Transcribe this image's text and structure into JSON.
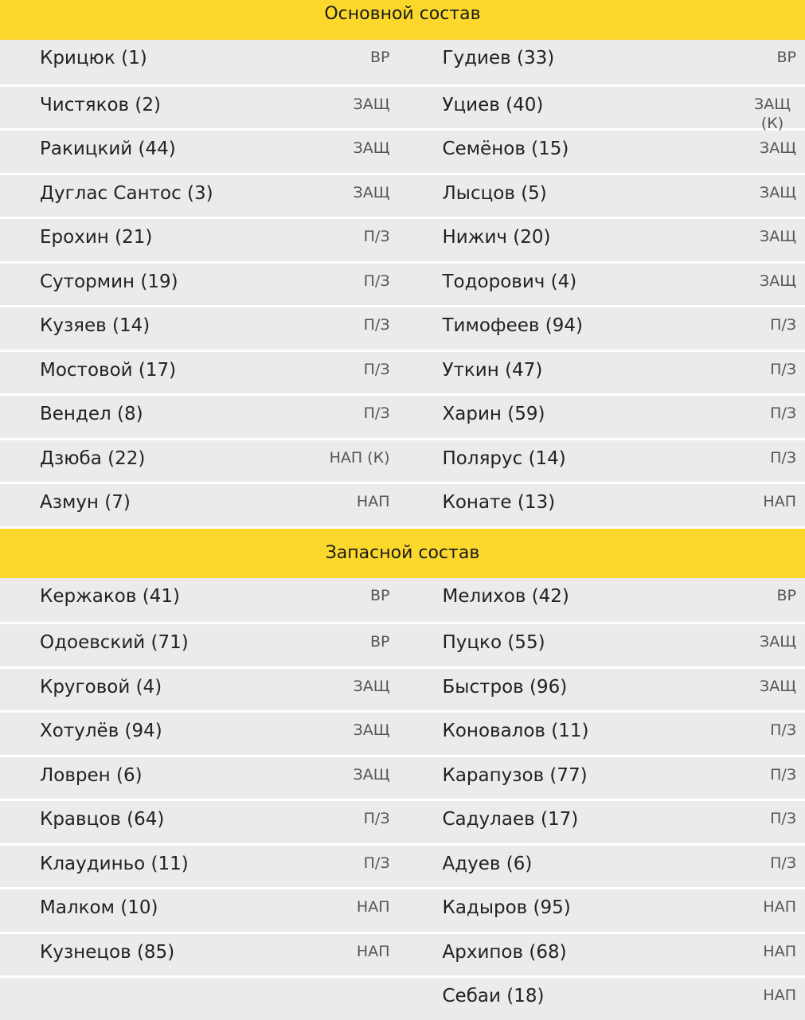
{
  "main_header": "Основной состав",
  "bench_header": "Запасной состав",
  "colors": {
    "header_bg": "#fcd82c",
    "row_bg": "#ebebeb"
  },
  "main": [
    [
      {
        "name": "Крицюк (1)",
        "pos": "ВР"
      },
      {
        "name": "Гудиев (33)",
        "pos": "ВР"
      }
    ],
    [
      {
        "name": "Чистяков (2)",
        "pos": "ЗАЩ"
      },
      {
        "name": "Уциев (40)",
        "pos": "ЗАЩ (К)"
      }
    ],
    [
      {
        "name": "Ракицкий (44)",
        "pos": "ЗАЩ"
      },
      {
        "name": "Семёнов (15)",
        "pos": "ЗАЩ"
      }
    ],
    [
      {
        "name": "Дуглас Сантос (3)",
        "pos": "ЗАЩ"
      },
      {
        "name": "Лысцов (5)",
        "pos": "ЗАЩ"
      }
    ],
    [
      {
        "name": "Ерохин (21)",
        "pos": "П/З"
      },
      {
        "name": "Нижич (20)",
        "pos": "ЗАЩ"
      }
    ],
    [
      {
        "name": "Сутормин (19)",
        "pos": "П/З"
      },
      {
        "name": "Тодорович (4)",
        "pos": "ЗАЩ"
      }
    ],
    [
      {
        "name": "Кузяев (14)",
        "pos": "П/З"
      },
      {
        "name": "Тимофеев (94)",
        "pos": "П/З"
      }
    ],
    [
      {
        "name": "Мостовой (17)",
        "pos": "П/З"
      },
      {
        "name": "Уткин (47)",
        "pos": "П/З"
      }
    ],
    [
      {
        "name": "Вендел (8)",
        "pos": "П/З"
      },
      {
        "name": "Харин (59)",
        "pos": "П/З"
      }
    ],
    [
      {
        "name": "Дзюба (22)",
        "pos": "НАП (К)"
      },
      {
        "name": "Полярус (14)",
        "pos": "П/З"
      }
    ],
    [
      {
        "name": "Азмун (7)",
        "pos": "НАП"
      },
      {
        "name": "Конате (13)",
        "pos": "НАП"
      }
    ]
  ],
  "bench": [
    [
      {
        "name": "Кержаков (41)",
        "pos": "ВР"
      },
      {
        "name": "Мелихов (42)",
        "pos": "ВР"
      }
    ],
    [
      {
        "name": "Одоевский (71)",
        "pos": "ВР"
      },
      {
        "name": "Пуцко (55)",
        "pos": "ЗАЩ"
      }
    ],
    [
      {
        "name": "Круговой (4)",
        "pos": "ЗАЩ"
      },
      {
        "name": "Быстров (96)",
        "pos": "ЗАЩ"
      }
    ],
    [
      {
        "name": "Хотулёв (94)",
        "pos": "ЗАЩ"
      },
      {
        "name": "Коновалов (11)",
        "pos": "П/З"
      }
    ],
    [
      {
        "name": "Ловрен (6)",
        "pos": "ЗАЩ"
      },
      {
        "name": "Карапузов (77)",
        "pos": "П/З"
      }
    ],
    [
      {
        "name": "Кравцов (64)",
        "pos": "П/З"
      },
      {
        "name": "Садулаев (17)",
        "pos": "П/З"
      }
    ],
    [
      {
        "name": "Клаудиньо (11)",
        "pos": "П/З"
      },
      {
        "name": "Адуев (6)",
        "pos": "П/З"
      }
    ],
    [
      {
        "name": "Малком (10)",
        "pos": "НАП"
      },
      {
        "name": "Кадыров (95)",
        "pos": "НАП"
      }
    ],
    [
      {
        "name": "Кузнецов (85)",
        "pos": "НАП"
      },
      {
        "name": "Архипов (68)",
        "pos": "НАП"
      }
    ],
    [
      null,
      {
        "name": "Себаи (18)",
        "pos": "НАП"
      }
    ]
  ]
}
